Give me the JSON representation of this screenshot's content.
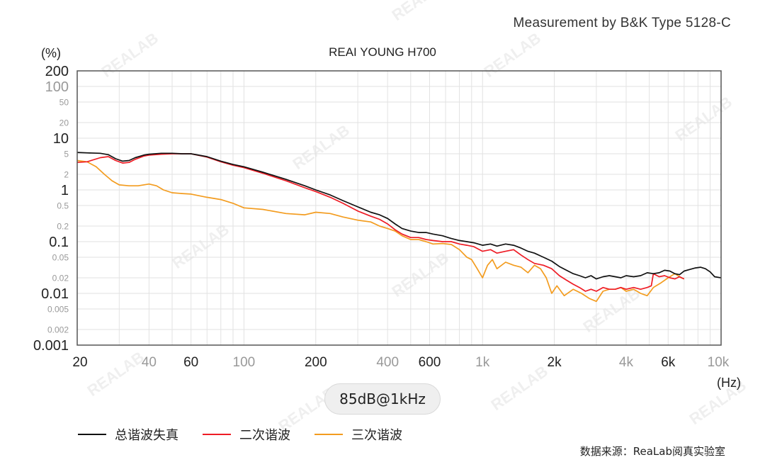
{
  "header": {
    "measurement_note": "Measurement by B&K Type 5128-C"
  },
  "badge": {
    "label": "85dB@1kHz"
  },
  "legend": {
    "items": [
      {
        "label": "总谐波失真",
        "color": "#111111"
      },
      {
        "label": "二次谐波",
        "color": "#ee1c25"
      },
      {
        "label": "三次谐波",
        "color": "#f39c1f"
      }
    ]
  },
  "footer": {
    "source": "数据来源：ReaLab阅真实验室"
  },
  "watermarks": [
    "REALAB"
  ],
  "chart_data": {
    "type": "line",
    "title": "REAI YOUNG H700",
    "ylabel": "(%)",
    "xlabel": "(Hz)",
    "xscale": "log",
    "yscale": "log",
    "xlim": [
      20,
      10000
    ],
    "ylim": [
      0.001,
      200
    ],
    "grid": true,
    "legend_position": "bottom",
    "x_ticks": [
      {
        "value": 20,
        "label": "20",
        "emphasis": true
      },
      {
        "value": 40,
        "label": "40",
        "emphasis": false
      },
      {
        "value": 60,
        "label": "60",
        "emphasis": true
      },
      {
        "value": 100,
        "label": "100",
        "emphasis": false
      },
      {
        "value": 200,
        "label": "200",
        "emphasis": true
      },
      {
        "value": 400,
        "label": "400",
        "emphasis": false
      },
      {
        "value": 600,
        "label": "600",
        "emphasis": true
      },
      {
        "value": 1000,
        "label": "1k",
        "emphasis": false
      },
      {
        "value": 2000,
        "label": "2k",
        "emphasis": true
      },
      {
        "value": 4000,
        "label": "4k",
        "emphasis": false
      },
      {
        "value": 6000,
        "label": "6k",
        "emphasis": true
      },
      {
        "value": 10000,
        "label": "10k",
        "emphasis": false
      }
    ],
    "x_gridlines": [
      20,
      30,
      40,
      50,
      60,
      70,
      80,
      90,
      100,
      200,
      300,
      400,
      500,
      600,
      700,
      800,
      900,
      1000,
      2000,
      3000,
      4000,
      5000,
      6000,
      7000,
      8000,
      9000,
      10000
    ],
    "y_ticks": [
      {
        "value": 200,
        "label": "200",
        "style": "major"
      },
      {
        "value": 100,
        "label": "100",
        "style": "mid"
      },
      {
        "value": 50,
        "label": "50",
        "style": "minor"
      },
      {
        "value": 20,
        "label": "20",
        "style": "minor"
      },
      {
        "value": 10,
        "label": "10",
        "style": "major"
      },
      {
        "value": 5,
        "label": "5",
        "style": "minor"
      },
      {
        "value": 2,
        "label": "2",
        "style": "minor"
      },
      {
        "value": 1,
        "label": "1",
        "style": "major"
      },
      {
        "value": 0.5,
        "label": "0.5",
        "style": "minor"
      },
      {
        "value": 0.2,
        "label": "0.2",
        "style": "minor"
      },
      {
        "value": 0.1,
        "label": "0.1",
        "style": "major"
      },
      {
        "value": 0.05,
        "label": "0.05",
        "style": "minor"
      },
      {
        "value": 0.02,
        "label": "0.02",
        "style": "minor"
      },
      {
        "value": 0.01,
        "label": "0.01",
        "style": "major"
      },
      {
        "value": 0.005,
        "label": "0.005",
        "style": "minor"
      },
      {
        "value": 0.002,
        "label": "0.002",
        "style": "minor"
      },
      {
        "value": 0.001,
        "label": "0.001",
        "style": "major"
      }
    ],
    "series": [
      {
        "name": "总谐波失真",
        "color": "#111111",
        "x": [
          20,
          22,
          25,
          27,
          29,
          31,
          33,
          35,
          38,
          40,
          45,
          50,
          55,
          60,
          70,
          80,
          90,
          100,
          120,
          150,
          180,
          200,
          230,
          260,
          300,
          340,
          370,
          400,
          430,
          460,
          500,
          540,
          580,
          620,
          680,
          740,
          800,
          860,
          920,
          1000,
          1080,
          1150,
          1250,
          1350,
          1450,
          1550,
          1650,
          1800,
          1950,
          2100,
          2250,
          2400,
          2550,
          2700,
          2850,
          3000,
          3200,
          3400,
          3600,
          3800,
          4000,
          4300,
          4600,
          4900,
          5200,
          5500,
          5800,
          6100,
          6400,
          6700,
          7000,
          7400,
          7800,
          8200,
          8600,
          9000,
          9400,
          10000
        ],
        "y": [
          5.3,
          5.2,
          5.1,
          4.8,
          4.0,
          3.6,
          3.7,
          4.2,
          4.7,
          4.9,
          5.1,
          5.1,
          5.0,
          5.0,
          4.4,
          3.6,
          3.1,
          2.8,
          2.2,
          1.6,
          1.2,
          1.0,
          0.8,
          0.62,
          0.47,
          0.37,
          0.33,
          0.28,
          0.22,
          0.18,
          0.16,
          0.15,
          0.15,
          0.14,
          0.13,
          0.115,
          0.105,
          0.1,
          0.095,
          0.085,
          0.09,
          0.082,
          0.09,
          0.085,
          0.075,
          0.065,
          0.06,
          0.05,
          0.042,
          0.033,
          0.028,
          0.024,
          0.022,
          0.02,
          0.022,
          0.019,
          0.021,
          0.022,
          0.021,
          0.02,
          0.022,
          0.021,
          0.022,
          0.025,
          0.024,
          0.025,
          0.028,
          0.027,
          0.024,
          0.023,
          0.027,
          0.029,
          0.031,
          0.032,
          0.03,
          0.026,
          0.021,
          0.02
        ]
      },
      {
        "name": "二次谐波",
        "color": "#ee1c25",
        "x": [
          20,
          22,
          25,
          27,
          29,
          31,
          33,
          35,
          38,
          40,
          45,
          50,
          55,
          60,
          70,
          80,
          90,
          100,
          120,
          150,
          180,
          200,
          230,
          260,
          300,
          340,
          370,
          400,
          430,
          460,
          500,
          540,
          580,
          620,
          680,
          740,
          800,
          860,
          920,
          1000,
          1080,
          1150,
          1250,
          1350,
          1450,
          1550,
          1650,
          1800,
          1950,
          2100,
          2250,
          2400,
          2550,
          2700,
          2850,
          3000,
          3200,
          3400,
          3600,
          3800,
          4000,
          4300,
          4600,
          4900,
          5100,
          5200,
          5500,
          5800,
          6100,
          6400,
          6700,
          7000
        ],
        "y": [
          3.4,
          3.5,
          4.2,
          4.4,
          3.7,
          3.3,
          3.4,
          3.9,
          4.5,
          4.7,
          4.9,
          5.0,
          5.0,
          5.0,
          4.3,
          3.5,
          3.0,
          2.7,
          2.1,
          1.5,
          1.1,
          0.93,
          0.72,
          0.55,
          0.39,
          0.31,
          0.27,
          0.22,
          0.17,
          0.14,
          0.12,
          0.12,
          0.11,
          0.105,
          0.1,
          0.1,
          0.09,
          0.085,
          0.08,
          0.065,
          0.07,
          0.06,
          0.065,
          0.07,
          0.055,
          0.045,
          0.038,
          0.035,
          0.03,
          0.022,
          0.018,
          0.015,
          0.013,
          0.011,
          0.012,
          0.011,
          0.013,
          0.012,
          0.012,
          0.013,
          0.012,
          0.013,
          0.012,
          0.013,
          0.014,
          0.024,
          0.021,
          0.022,
          0.02,
          0.019,
          0.021,
          0.019
        ]
      },
      {
        "name": "三次谐波",
        "color": "#f39c1f",
        "x": [
          20,
          22,
          24,
          26,
          28,
          30,
          33,
          36,
          40,
          43,
          46,
          50,
          55,
          60,
          70,
          80,
          90,
          100,
          120,
          150,
          180,
          200,
          230,
          260,
          300,
          340,
          370,
          400,
          430,
          460,
          500,
          540,
          580,
          620,
          680,
          740,
          800,
          860,
          900,
          950,
          1000,
          1050,
          1100,
          1150,
          1250,
          1350,
          1450,
          1550,
          1650,
          1750,
          1850,
          1950,
          2050,
          2200,
          2400,
          2600,
          2800,
          3000,
          3200,
          3400,
          3600,
          3800,
          4000,
          4300,
          4600,
          4900,
          5200,
          5600,
          6000,
          6400,
          6800,
          7000
        ],
        "y": [
          3.7,
          3.5,
          2.8,
          2.0,
          1.5,
          1.25,
          1.2,
          1.2,
          1.3,
          1.2,
          1.0,
          0.88,
          0.85,
          0.83,
          0.72,
          0.65,
          0.55,
          0.45,
          0.42,
          0.35,
          0.33,
          0.37,
          0.35,
          0.3,
          0.26,
          0.24,
          0.2,
          0.18,
          0.16,
          0.13,
          0.11,
          0.11,
          0.1,
          0.09,
          0.092,
          0.088,
          0.07,
          0.05,
          0.045,
          0.03,
          0.02,
          0.035,
          0.045,
          0.03,
          0.04,
          0.035,
          0.032,
          0.025,
          0.035,
          0.03,
          0.02,
          0.01,
          0.014,
          0.009,
          0.012,
          0.01,
          0.008,
          0.007,
          0.011,
          0.012,
          0.012,
          0.013,
          0.011,
          0.012,
          0.01,
          0.009,
          0.013,
          0.016,
          0.02,
          0.024,
          0.02,
          0.019
        ]
      }
    ]
  }
}
